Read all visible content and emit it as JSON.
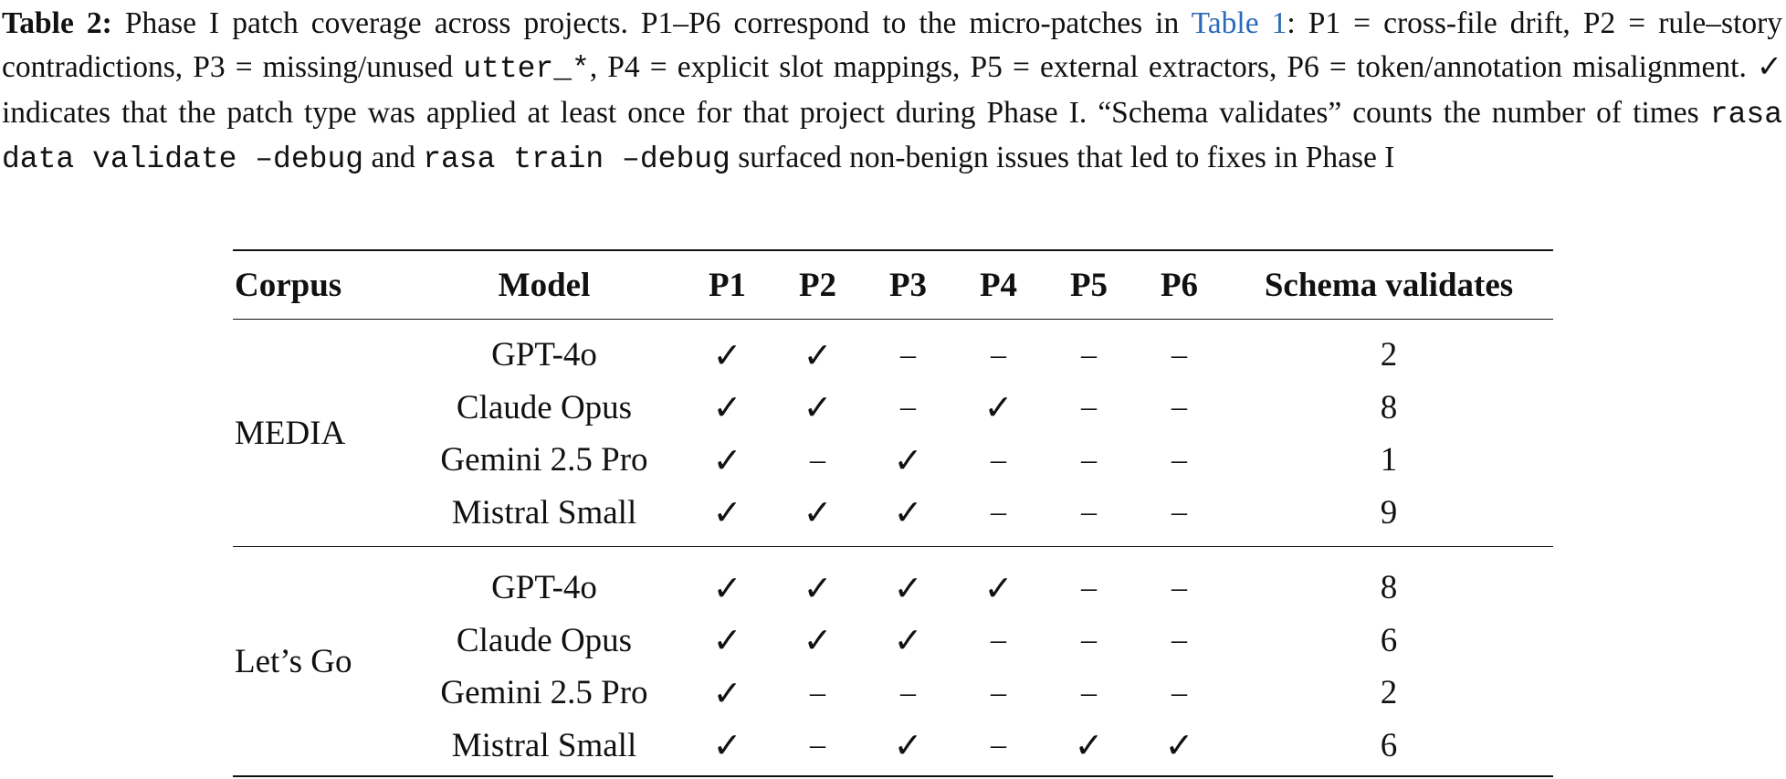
{
  "caption": {
    "label": "Table 2:",
    "part1": " Phase I patch coverage across projects. P1–P6 correspond to the micro-patches in ",
    "link": "Table 1",
    "part2": ": P1 = cross-file drift, P2 = rule–story contradictions, P3 = missing/unused ",
    "code1": "utter_*",
    "part3": ", P4 = explicit slot mappings, P5 = external extractors, P6 = token/annotation misalignment. ✓ indicates that the patch type was applied at least once for that project during Phase I. “Schema validates” counts the number of times ",
    "code2": "rasa data validate –debug",
    "part4": " and ",
    "code3": "rasa train –debug",
    "part5": " surfaced non-benign issues that led to fixes in Phase I"
  },
  "table": {
    "headers": [
      "Corpus",
      "Model",
      "P1",
      "P2",
      "P3",
      "P4",
      "P5",
      "P6",
      "Schema validates"
    ],
    "groups": [
      {
        "corpus": "MEDIA",
        "rows": [
          {
            "model": "GPT-4o",
            "cells": [
              "✓",
              "✓",
              "–",
              "–",
              "–",
              "–"
            ],
            "schema": "2"
          },
          {
            "model": "Claude Opus",
            "cells": [
              "✓",
              "✓",
              "–",
              "✓",
              "–",
              "–"
            ],
            "schema": "8"
          },
          {
            "model": "Gemini 2.5 Pro",
            "cells": [
              "✓",
              "–",
              "✓",
              "–",
              "–",
              "–"
            ],
            "schema": "1"
          },
          {
            "model": "Mistral Small",
            "cells": [
              "✓",
              "✓",
              "✓",
              "–",
              "–",
              "–"
            ],
            "schema": "9"
          }
        ]
      },
      {
        "corpus": "Let’s Go",
        "rows": [
          {
            "model": "GPT-4o",
            "cells": [
              "✓",
              "✓",
              "✓",
              "✓",
              "–",
              "–"
            ],
            "schema": "8"
          },
          {
            "model": "Claude Opus",
            "cells": [
              "✓",
              "✓",
              "✓",
              "–",
              "–",
              "–"
            ],
            "schema": "6"
          },
          {
            "model": "Gemini 2.5 Pro",
            "cells": [
              "✓",
              "–",
              "–",
              "–",
              "–",
              "–"
            ],
            "schema": "2"
          },
          {
            "model": "Mistral Small",
            "cells": [
              "✓",
              "–",
              "✓",
              "–",
              "✓",
              "✓"
            ],
            "schema": "6"
          }
        ]
      }
    ]
  }
}
